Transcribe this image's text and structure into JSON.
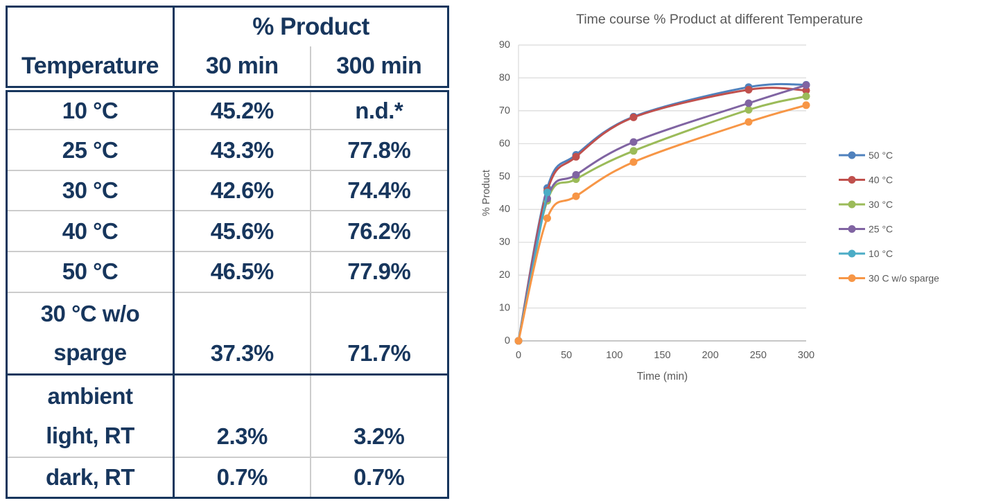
{
  "table": {
    "group_header": "% Product",
    "columns": {
      "temperature": "Temperature",
      "t30": "30 min",
      "t300": "300 min"
    },
    "rows": [
      {
        "label_lines": [
          "10 °C"
        ],
        "min30": "45.2%",
        "min300": "n.d.*"
      },
      {
        "label_lines": [
          "25 °C"
        ],
        "min30": "43.3%",
        "min300": "77.8%"
      },
      {
        "label_lines": [
          "30 °C"
        ],
        "min30": "42.6%",
        "min300": "74.4%"
      },
      {
        "label_lines": [
          "40 °C"
        ],
        "min30": "45.6%",
        "min300": "76.2%"
      },
      {
        "label_lines": [
          "50 °C"
        ],
        "min30": "46.5%",
        "min300": "77.9%"
      },
      {
        "label_lines": [
          "30 °C w/o",
          "sparge"
        ],
        "min30": "37.3%",
        "min300": "71.7%",
        "tall": true
      },
      {
        "label_lines": [
          "ambient",
          "light, RT"
        ],
        "min30": "2.3%",
        "min300": "3.2%",
        "tall": true,
        "thick_top": true
      },
      {
        "label_lines": [
          "dark, RT"
        ],
        "min30": "0.7%",
        "min300": "0.7%"
      }
    ],
    "colors": {
      "navy": "#17365D",
      "grid_gray": "#CCCCCC"
    }
  },
  "chart_data": {
    "type": "line",
    "title": "Time course % Product at different Temperature",
    "xlabel": "Time (min)",
    "ylabel": "% Product",
    "xlim": [
      0,
      300
    ],
    "ylim": [
      0,
      90
    ],
    "x_ticks": [
      0,
      50,
      100,
      150,
      200,
      250,
      300
    ],
    "y_ticks": [
      0,
      10,
      20,
      30,
      40,
      50,
      60,
      70,
      80,
      90
    ],
    "grid": "horizontal",
    "legend_position": "right",
    "x": [
      0,
      30,
      60,
      120,
      240,
      300
    ],
    "series": [
      {
        "name": "50 °C",
        "color": "#4F81BD",
        "values": [
          0,
          46.5,
          56.6,
          68.2,
          77.2,
          77.9
        ]
      },
      {
        "name": "40 °C",
        "color": "#C0504D",
        "values": [
          0,
          45.6,
          56.0,
          68.0,
          76.4,
          76.2
        ]
      },
      {
        "name": "30 °C",
        "color": "#9BBB59",
        "values": [
          0,
          42.6,
          49.2,
          57.8,
          70.3,
          74.4
        ]
      },
      {
        "name": "25 °C",
        "color": "#8064A2",
        "values": [
          0,
          43.3,
          50.5,
          60.5,
          72.3,
          77.8
        ]
      },
      {
        "name": "10 °C",
        "color": "#4BACC6",
        "x": [
          0,
          30
        ],
        "values": [
          0,
          45.2
        ]
      },
      {
        "name": "30 C w/o sparge",
        "color": "#F79646",
        "values": [
          0,
          37.3,
          44.0,
          54.4,
          66.6,
          71.7
        ]
      }
    ],
    "text_color": "#595959",
    "gridline_color": "#D9D9D9",
    "axis_color": "#BFBFBF"
  }
}
